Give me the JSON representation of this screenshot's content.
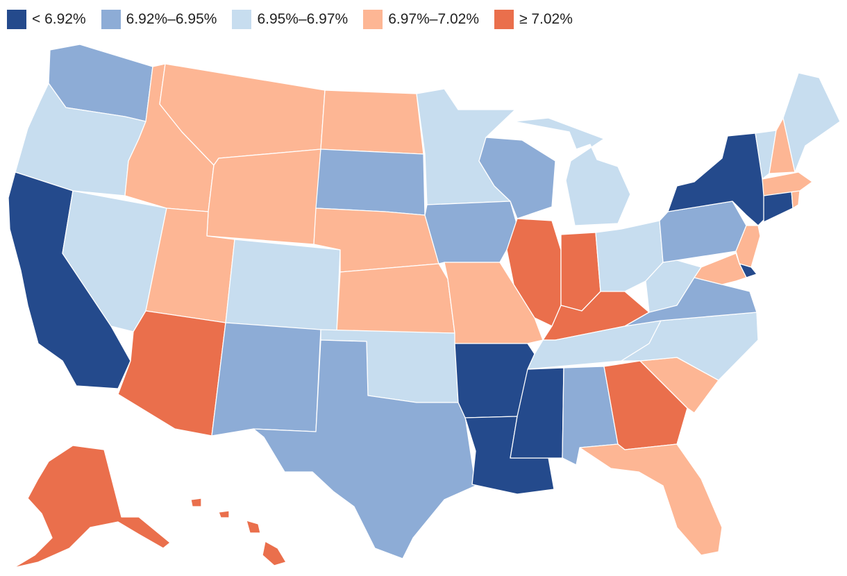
{
  "legend": [
    {
      "label": "< 6.92%",
      "color": "#244a8c"
    },
    {
      "label": "6.92%–6.95%",
      "color": "#8dacd6"
    },
    {
      "label": "6.95%–6.97%",
      "color": "#c7ddef"
    },
    {
      "label": "6.97%–7.02%",
      "color": "#fdb694"
    },
    {
      "label": "≥ 7.02%",
      "color": "#ea6f4c"
    }
  ],
  "states": {
    "WA": "6.92%–6.95%",
    "OR": "6.95%–6.97%",
    "CA": "< 6.92%",
    "NV": "6.95%–6.97%",
    "ID": "6.97%–7.02%",
    "MT": "6.97%–7.02%",
    "WY": "6.97%–7.02%",
    "UT": "6.97%–7.02%",
    "AZ": "≥ 7.02%",
    "CO": "6.95%–6.97%",
    "NM": "6.92%–6.95%",
    "ND": "6.97%–7.02%",
    "SD": "6.92%–6.95%",
    "NE": "6.97%–7.02%",
    "KS": "6.97%–7.02%",
    "OK": "6.95%–6.97%",
    "TX": "6.92%–6.95%",
    "MN": "6.95%–6.97%",
    "IA": "6.92%–6.95%",
    "MO": "6.97%–7.02%",
    "AR": "< 6.92%",
    "LA": "< 6.92%",
    "WI": "6.92%–6.95%",
    "IL": "≥ 7.02%",
    "MI": "6.95%–6.97%",
    "IN": "≥ 7.02%",
    "OH": "6.95%–6.97%",
    "KY": "≥ 7.02%",
    "TN": "6.95%–6.97%",
    "MS": "< 6.92%",
    "AL": "6.92%–6.95%",
    "GA": "≥ 7.02%",
    "FL": "6.97%–7.02%",
    "SC": "6.97%–7.02%",
    "NC": "6.95%–6.97%",
    "VA": "6.92%–6.95%",
    "WV": "6.95%–6.97%",
    "PA": "6.92%–6.95%",
    "NY": "< 6.92%",
    "VT": "6.95%–6.97%",
    "NH": "6.97%–7.02%",
    "ME": "6.95%–6.97%",
    "MA": "6.97%–7.02%",
    "RI": "6.97%–7.02%",
    "CT": "< 6.92%",
    "NJ": "6.97%–7.02%",
    "DE": "< 6.92%",
    "MD": "6.97%–7.02%",
    "AK": "≥ 7.02%",
    "HI": "≥ 7.02%"
  }
}
